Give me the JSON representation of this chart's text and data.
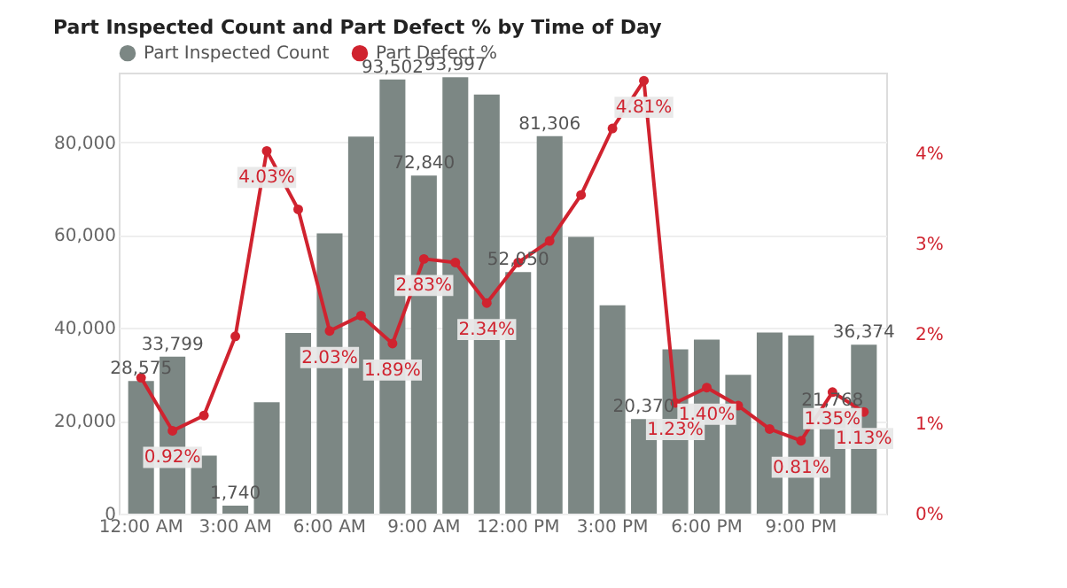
{
  "chart_data": {
    "type": "bar",
    "title": "Part Inspected Count and Part Defect % by Time of Day",
    "categories": [
      "12:00 AM",
      null,
      null,
      "3:00 AM",
      null,
      null,
      "6:00 AM",
      null,
      null,
      "9:00 AM",
      null,
      null,
      "12:00 PM",
      null,
      null,
      "3:00 PM",
      null,
      null,
      "6:00 PM",
      null,
      null,
      "9:00 PM",
      null,
      null
    ],
    "series": [
      {
        "name": "Part Inspected Count",
        "type": "bar",
        "color": "#7c8784",
        "values": [
          28575,
          33799,
          12500,
          1740,
          24000,
          38900,
          60400,
          81200,
          93502,
          72840,
          93997,
          90300,
          52050,
          81306,
          59600,
          44900,
          20370,
          35400,
          37500,
          29900,
          39000,
          38400,
          21768,
          36374
        ],
        "value_labels": [
          "28,575",
          "33,799",
          null,
          "1,740",
          null,
          null,
          null,
          null,
          "93,502",
          "72,840",
          "93,997",
          null,
          "52,050",
          "81,306",
          null,
          null,
          "20,370",
          null,
          null,
          null,
          null,
          null,
          "21,768",
          "36,374"
        ]
      },
      {
        "name": "Part Defect %",
        "type": "line",
        "axis": "y2",
        "color": "#d0232f",
        "values": [
          1.51,
          0.92,
          1.09,
          1.97,
          4.03,
          3.38,
          2.03,
          2.2,
          1.89,
          2.83,
          2.79,
          2.34,
          2.79,
          3.03,
          3.54,
          4.28,
          4.81,
          1.23,
          1.4,
          1.2,
          0.94,
          0.81,
          1.35,
          1.13
        ],
        "value_labels": [
          null,
          "0.92%",
          null,
          null,
          "4.03%",
          null,
          "2.03%",
          null,
          "1.89%",
          "2.83%",
          null,
          "2.34%",
          null,
          null,
          null,
          null,
          "4.81%",
          "1.23%",
          "1.40%",
          null,
          null,
          "0.81%",
          "1.35%",
          "1.13%"
        ]
      }
    ],
    "ylim": [
      0,
      95000
    ],
    "yticks": [
      0,
      {
        "value": 20000,
        "label": "20,000"
      },
      {
        "value": 40000,
        "label": "40,000"
      },
      {
        "value": 60000,
        "label": "60,000"
      },
      {
        "value": 80000,
        "label": "80,000"
      }
    ],
    "y2lim": [
      0,
      4.9
    ],
    "y2ticks": [
      {
        "value": 0,
        "label": "0%"
      },
      {
        "value": 1,
        "label": "1%"
      },
      {
        "value": 2,
        "label": "2%"
      },
      {
        "value": 3,
        "label": "3%"
      },
      {
        "value": 4,
        "label": "4%"
      }
    ],
    "grid": "y",
    "legend": "top left",
    "marker": "circle",
    "line_style": "solid"
  }
}
